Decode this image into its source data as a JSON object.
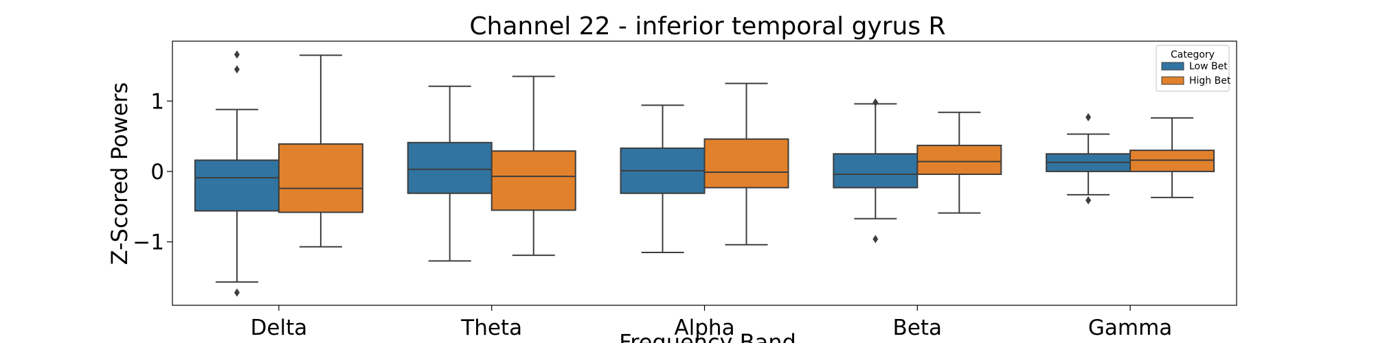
{
  "chart_data": {
    "type": "boxplot",
    "title": "Channel 22 - inferior temporal gyrus R",
    "xlabel": "Frequency Band",
    "ylabel": "Z-Scored Powers",
    "ylim": [
      -1.9,
      1.85
    ],
    "yticks": [
      -1,
      0,
      1
    ],
    "categories": [
      "Delta",
      "Theta",
      "Alpha",
      "Beta",
      "Gamma"
    ],
    "legend": {
      "title": "Category",
      "position": "top-right"
    },
    "series": [
      {
        "name": "Low Bet",
        "color": "#3274a1",
        "boxes": [
          {
            "whisker_low": -1.57,
            "q1": -0.56,
            "median": -0.09,
            "q3": 0.16,
            "whisker_high": 0.88,
            "outliers": [
              1.66,
              1.45,
              -1.72
            ]
          },
          {
            "whisker_low": -1.27,
            "q1": -0.31,
            "median": 0.03,
            "q3": 0.41,
            "whisker_high": 1.21,
            "outliers": []
          },
          {
            "whisker_low": -1.15,
            "q1": -0.31,
            "median": 0.01,
            "q3": 0.33,
            "whisker_high": 0.94,
            "outliers": []
          },
          {
            "whisker_low": -0.67,
            "q1": -0.23,
            "median": -0.04,
            "q3": 0.25,
            "whisker_high": 0.96,
            "outliers": [
              0.98,
              -0.96
            ]
          },
          {
            "whisker_low": -0.33,
            "q1": 0.0,
            "median": 0.13,
            "q3": 0.25,
            "whisker_high": 0.53,
            "outliers": [
              0.77,
              -0.41
            ]
          }
        ]
      },
      {
        "name": "High Bet",
        "color": "#e1812c",
        "boxes": [
          {
            "whisker_low": -1.07,
            "q1": -0.58,
            "median": -0.24,
            "q3": 0.39,
            "whisker_high": 1.65,
            "outliers": []
          },
          {
            "whisker_low": -1.19,
            "q1": -0.55,
            "median": -0.07,
            "q3": 0.29,
            "whisker_high": 1.35,
            "outliers": []
          },
          {
            "whisker_low": -1.04,
            "q1": -0.23,
            "median": -0.01,
            "q3": 0.46,
            "whisker_high": 1.25,
            "outliers": []
          },
          {
            "whisker_low": -0.59,
            "q1": -0.04,
            "median": 0.14,
            "q3": 0.37,
            "whisker_high": 0.84,
            "outliers": []
          },
          {
            "whisker_low": -0.37,
            "q1": 0.0,
            "median": 0.16,
            "q3": 0.3,
            "whisker_high": 0.76,
            "outliers": []
          }
        ]
      }
    ]
  }
}
